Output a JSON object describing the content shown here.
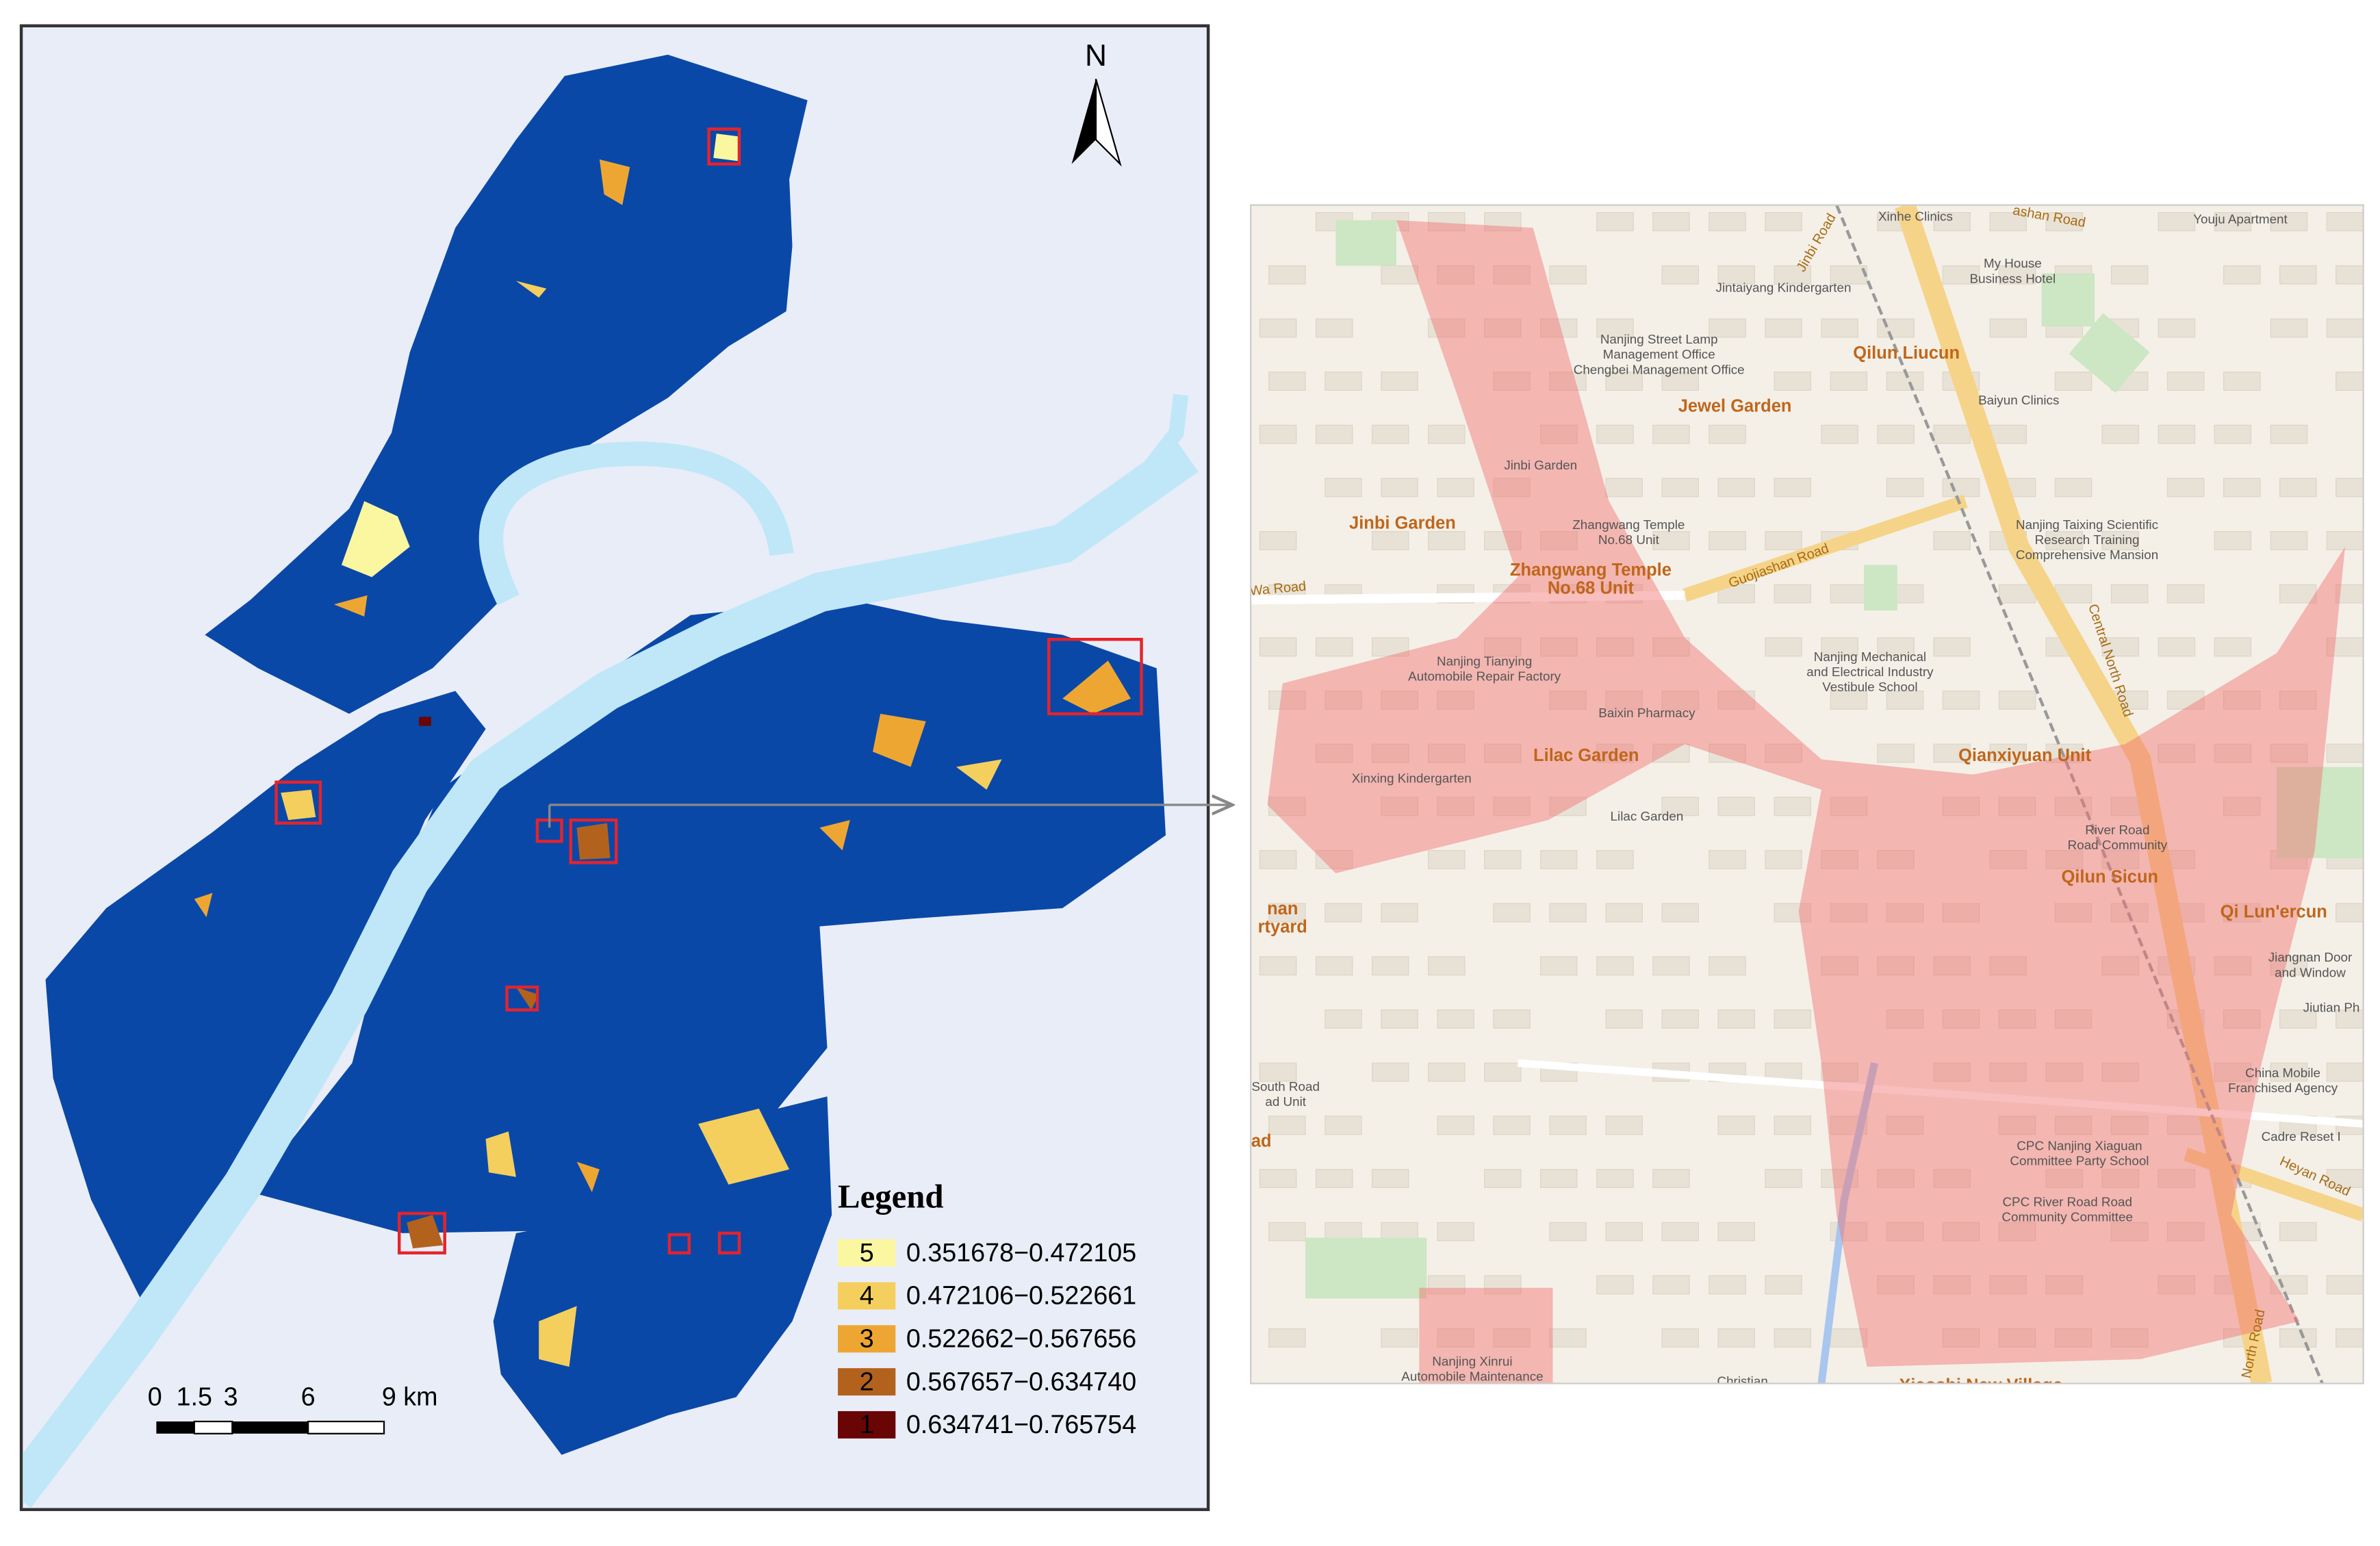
{
  "left_map": {
    "north_label": "N",
    "legend": {
      "title": "Legend",
      "items": [
        {
          "class": 5,
          "range": "0.351678−0.472105",
          "color": "#fbf7a1"
        },
        {
          "class": 4,
          "range": "0.472106−0.522661",
          "color": "#f4cf5d"
        },
        {
          "class": 3,
          "range": "0.522662−0.567656",
          "color": "#eea633"
        },
        {
          "class": 2,
          "range": "0.567657−0.634740",
          "color": "#b3621e"
        },
        {
          "class": 1,
          "range": "0.634741−0.765754",
          "color": "#6a0505"
        }
      ]
    },
    "scale_bar": {
      "labels": [
        "0",
        "1.5",
        "3",
        "6",
        "9 km"
      ]
    }
  },
  "right_map": {
    "area_labels": [
      "Qilun Liucun",
      "Jewel Garden",
      "Jinbi Garden",
      [
        "Zhangwang Temple",
        "No.68 Unit"
      ],
      "Lilac Garden",
      "Qianxiyuan Unit",
      "Qilun Sicun",
      "Qi Lun'ercun",
      [
        "nan",
        "rtyard"
      ],
      "ad",
      "Xiaoshi New Village"
    ],
    "poi_labels": [
      "Xinhe Clinics",
      "Youju Apartment",
      "Jintaiyang Kindergarten",
      [
        "My House",
        "Business Hotel"
      ],
      [
        "Nanjing Street Lamp",
        "Management Office",
        "Chengbei Management Office"
      ],
      "Baiyun Clinics",
      "Jinbi Garden",
      [
        "Zhangwang Temple",
        "No.68 Unit"
      ],
      [
        "Nanjing Taixing Scientific",
        "Research Training",
        "Comprehensive Mansion"
      ],
      [
        "Nanjing Tianying",
        "Automobile Repair Factory"
      ],
      [
        "Nanjing Mechanical",
        "and Electrical Industry",
        "Vestibule School"
      ],
      "Baixin Pharmacy",
      "Xinxing Kindergarten",
      "Lilac Garden",
      [
        "River Road",
        "Road Community"
      ],
      [
        "Jiangnan Door",
        "and Window"
      ],
      "Jiutian Ph",
      [
        "China Mobile",
        "Franchised Agency"
      ],
      "Cadre Reset I",
      [
        "CPC Nanjing Xiaguan",
        "Committee Party School"
      ],
      [
        "CPC River Road Road",
        "Community Committee"
      ],
      [
        "Nanjing Xinrui",
        "Automobile Maintenance"
      ],
      "Christian",
      [
        "South Road",
        "ad Unit"
      ]
    ],
    "road_labels": [
      "Jinbi Road",
      "Guojiashan Road",
      "Central North Road",
      "Heyan Road",
      "ashan Road",
      "Wa Road",
      "North Road"
    ]
  }
}
